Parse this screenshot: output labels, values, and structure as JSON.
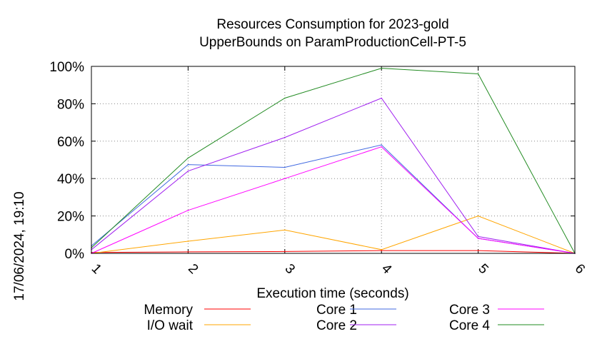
{
  "chart_data": {
    "type": "line",
    "title": "Resources Consumption for 2023-gold",
    "subtitle": "UpperBounds on ParamProductionCell-PT-5",
    "xlabel": "Execution time (seconds)",
    "ylabel": "",
    "side_label": "17/06/2024, 19:10",
    "x": [
      1,
      2,
      3,
      4,
      5,
      6
    ],
    "xlim": [
      1,
      6
    ],
    "ylim": [
      0,
      100
    ],
    "x_ticks": [
      "1",
      "2",
      "3",
      "4",
      "5",
      "6"
    ],
    "y_ticks": [
      "0%",
      "20%",
      "40%",
      "60%",
      "80%",
      "100%"
    ],
    "grid": true,
    "legend_position": "bottom",
    "series": [
      {
        "name": "Memory",
        "color": "#ff0000",
        "values": [
          0.5,
          0.8,
          1.0,
          1.5,
          1.5,
          0
        ]
      },
      {
        "name": "I/O wait",
        "color": "#ffa500",
        "values": [
          0,
          6.5,
          12.5,
          2,
          20,
          0
        ]
      },
      {
        "name": "Core 1",
        "color": "#4169e1",
        "values": [
          4,
          47.5,
          46,
          58,
          8,
          0
        ]
      },
      {
        "name": "Core 2",
        "color": "#a020f0",
        "values": [
          2,
          44,
          62,
          83,
          9,
          0
        ]
      },
      {
        "name": "Core 3",
        "color": "#ff00ff",
        "values": [
          0,
          23,
          40,
          57,
          8,
          0
        ]
      },
      {
        "name": "Core 4",
        "color": "#228b22",
        "values": [
          3,
          51,
          83,
          99,
          96,
          0
        ]
      }
    ]
  }
}
